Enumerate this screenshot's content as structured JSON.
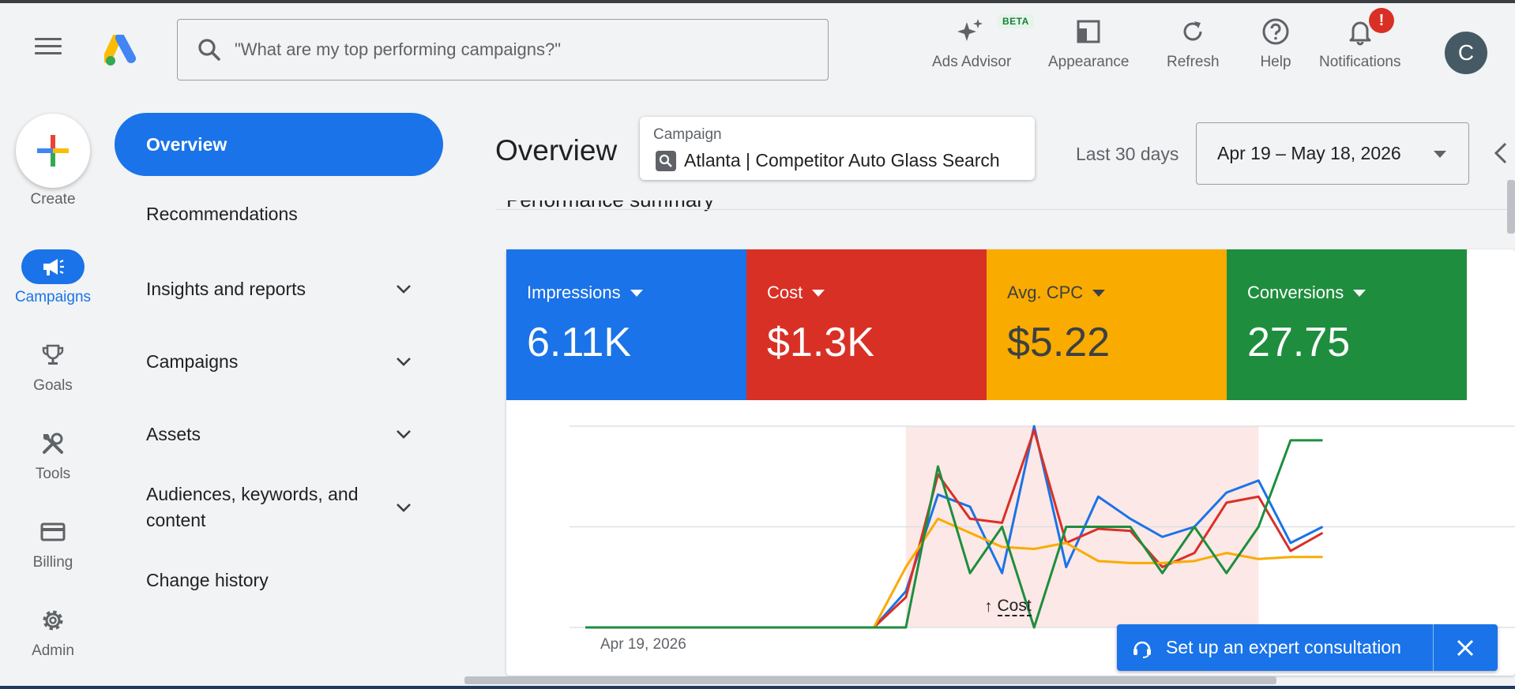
{
  "header": {
    "search_placeholder": "\"What are my top performing campaigns?\"",
    "tools": [
      {
        "label": "Ads Advisor",
        "badge": "BETA"
      },
      {
        "label": "Appearance"
      },
      {
        "label": "Refresh"
      },
      {
        "label": "Help"
      },
      {
        "label": "Notifications",
        "alert": "!"
      }
    ],
    "avatar_letter": "C"
  },
  "rail": {
    "create_label": "Create",
    "items": [
      {
        "label": "Campaigns",
        "icon": "megaphone-icon",
        "active": true
      },
      {
        "label": "Goals",
        "icon": "trophy-icon"
      },
      {
        "label": "Tools",
        "icon": "tools-icon"
      },
      {
        "label": "Billing",
        "icon": "credit-card-icon"
      },
      {
        "label": "Admin",
        "icon": "gear-icon"
      }
    ]
  },
  "nav": {
    "items": [
      {
        "label": "Overview",
        "active": true
      },
      {
        "label": "Recommendations"
      },
      {
        "label": "Insights and reports",
        "expandable": true
      },
      {
        "label": "Campaigns",
        "expandable": true
      },
      {
        "label": "Assets",
        "expandable": true
      },
      {
        "label": "Audiences, keywords, and content",
        "expandable": true
      },
      {
        "label": "Change history"
      }
    ]
  },
  "main": {
    "title": "Overview",
    "campaign_picker": {
      "label": "Campaign",
      "value": "Atlanta | Competitor Auto Glass Search"
    },
    "range_label": "Last 30 days",
    "date_range": "Apr 19 – May 18, 2026",
    "section_title": "Performance summary",
    "metrics": [
      {
        "label": "Impressions",
        "value": "6.11K",
        "color": "#1a73e8"
      },
      {
        "label": "Cost",
        "value": "$1.3K",
        "color": "#d93025"
      },
      {
        "label": "Avg. CPC",
        "value": "$5.22",
        "color": "#f9ab00"
      },
      {
        "label": "Conversions",
        "value": "27.75",
        "color": "#1e8e3e"
      }
    ],
    "chart_start_label": "Apr 19, 2026",
    "annotation_label": "Cost"
  },
  "chart_data": {
    "type": "line",
    "x_start": "Apr 19, 2026",
    "x_count": 30,
    "ylim": [
      0,
      100
    ],
    "grid": true,
    "highlight_range": [
      10,
      21
    ],
    "series": [
      {
        "name": "Impressions",
        "color": "#1a73e8",
        "values": [
          0,
          0,
          0,
          0,
          0,
          0,
          0,
          0,
          0,
          0,
          18,
          66,
          60,
          27,
          100,
          30,
          65,
          54,
          45,
          50,
          67,
          73,
          42,
          50
        ]
      },
      {
        "name": "Cost",
        "color": "#d93025",
        "values": [
          0,
          0,
          0,
          0,
          0,
          0,
          0,
          0,
          0,
          0,
          15,
          76,
          54,
          52,
          98,
          42,
          49,
          48,
          30,
          37,
          62,
          65,
          38,
          47
        ]
      },
      {
        "name": "Avg. CPC",
        "color": "#f9ab00",
        "values": [
          0,
          0,
          0,
          0,
          0,
          0,
          0,
          0,
          0,
          0,
          30,
          54,
          47,
          40,
          39,
          42,
          33,
          32,
          32,
          33,
          37,
          34,
          35,
          35
        ]
      },
      {
        "name": "Conversions",
        "color": "#1e8e3e",
        "values": [
          0,
          0,
          0,
          0,
          0,
          0,
          0,
          0,
          0,
          0,
          0,
          80,
          27,
          50,
          0,
          50,
          50,
          50,
          27,
          50,
          27,
          50,
          93,
          93
        ]
      }
    ]
  },
  "consult": {
    "label": "Set up an expert consultation"
  }
}
